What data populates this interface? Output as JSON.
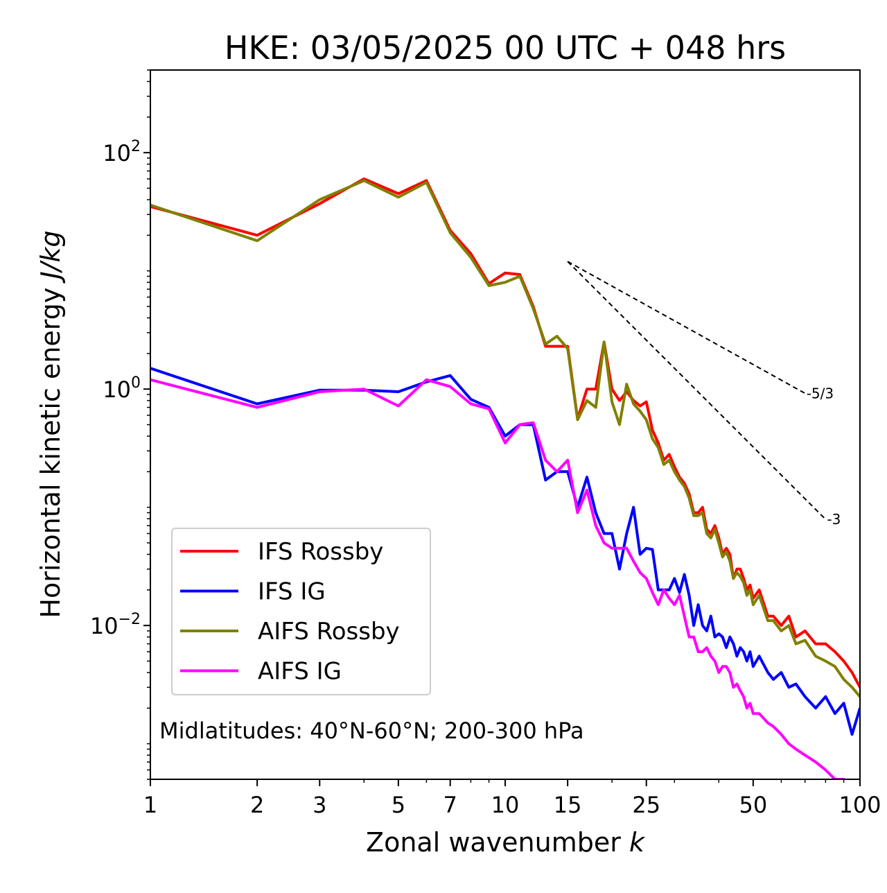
{
  "chart_data": {
    "type": "line",
    "title": "HKE: 03/05/2025 00 UTC + 048 hrs",
    "xlabel_prefix": "Zonal wavenumber ",
    "xlabel_var": "k",
    "ylabel_prefix": "Horizontal kinetic energy ",
    "ylabel_unit": "J/kg",
    "x_scale": "log",
    "y_scale": "log",
    "xlim": [
      1,
      100
    ],
    "ylim": [
      0.0005,
      500
    ],
    "grid": false,
    "legend_position": "lower-left",
    "x_ticks": [
      1,
      2,
      3,
      5,
      7,
      10,
      15,
      25,
      50,
      100
    ],
    "x_tick_labels": [
      "1",
      "2",
      "3",
      "5",
      "7",
      "10",
      "15",
      "25",
      "50",
      "100"
    ],
    "y_ticks": [
      0.01,
      1,
      100
    ],
    "y_tick_labels": [
      {
        "base": "10",
        "exp": "−2"
      },
      {
        "base": "10",
        "exp": "0"
      },
      {
        "base": "10",
        "exp": "2"
      }
    ],
    "annotation": "Midlatitudes: 40°N-60°N; 200-300 hPa",
    "reference_lines": [
      {
        "label": "-5/3",
        "slope": -1.6667,
        "x_start": 15,
        "y_start": 12,
        "x_end": 70,
        "style": "dashed",
        "color": "#000000"
      },
      {
        "label": "-3",
        "slope": -3,
        "x_start": 15,
        "y_start": 12,
        "x_end": 80,
        "style": "dashed",
        "color": "#000000"
      }
    ],
    "series": [
      {
        "name": "IFS Rossby",
        "color": "#ff0000",
        "x": [
          1,
          2,
          3,
          4,
          5,
          6,
          7,
          8,
          9,
          10,
          11,
          12,
          13,
          14,
          15,
          16,
          17,
          18,
          19,
          20,
          21,
          22,
          23,
          24,
          25,
          26,
          27,
          28,
          29,
          30,
          31,
          32,
          33,
          34,
          35,
          36,
          37,
          38,
          39,
          40,
          41,
          42,
          43,
          44,
          45,
          46,
          47,
          48,
          49,
          50,
          52,
          55,
          57,
          60,
          63,
          66,
          70,
          75,
          80,
          85,
          90,
          95,
          100
        ],
        "y": [
          35,
          20,
          37,
          60,
          45,
          58,
          22,
          14,
          7.8,
          9.6,
          9.3,
          5,
          2.3,
          2.3,
          2.3,
          0.56,
          1.0,
          1.0,
          2.5,
          1.0,
          0.8,
          0.95,
          0.8,
          0.72,
          0.78,
          0.45,
          0.35,
          0.25,
          0.28,
          0.22,
          0.18,
          0.16,
          0.13,
          0.09,
          0.09,
          0.1,
          0.065,
          0.06,
          0.07,
          0.055,
          0.04,
          0.045,
          0.04,
          0.025,
          0.03,
          0.03,
          0.025,
          0.02,
          0.022,
          0.017,
          0.02,
          0.012,
          0.012,
          0.01,
          0.012,
          0.008,
          0.009,
          0.007,
          0.007,
          0.006,
          0.005,
          0.004,
          0.003
        ]
      },
      {
        "name": "IFS IG",
        "color": "#0000ff",
        "x": [
          1,
          2,
          3,
          4,
          5,
          6,
          7,
          8,
          9,
          10,
          11,
          12,
          13,
          14,
          15,
          16,
          17,
          18,
          19,
          20,
          21,
          22,
          23,
          24,
          25,
          26,
          27,
          28,
          29,
          30,
          31,
          32,
          33,
          34,
          35,
          36,
          37,
          38,
          39,
          40,
          41,
          42,
          43,
          44,
          45,
          46,
          47,
          48,
          49,
          50,
          52,
          55,
          57,
          60,
          63,
          66,
          70,
          75,
          80,
          85,
          90,
          95,
          100
        ],
        "y": [
          1.5,
          0.75,
          0.98,
          0.98,
          0.95,
          1.15,
          1.3,
          0.82,
          0.7,
          0.4,
          0.5,
          0.5,
          0.17,
          0.2,
          0.2,
          0.1,
          0.18,
          0.09,
          0.06,
          0.06,
          0.03,
          0.06,
          0.1,
          0.04,
          0.045,
          0.044,
          0.02,
          0.02,
          0.02,
          0.025,
          0.019,
          0.027,
          0.018,
          0.01,
          0.015,
          0.01,
          0.009,
          0.012,
          0.008,
          0.0085,
          0.008,
          0.0065,
          0.008,
          0.007,
          0.0055,
          0.0065,
          0.006,
          0.005,
          0.006,
          0.0045,
          0.0055,
          0.004,
          0.0035,
          0.004,
          0.003,
          0.0032,
          0.0025,
          0.002,
          0.0025,
          0.0018,
          0.0022,
          0.0012,
          0.002
        ]
      },
      {
        "name": "AIFS Rossby",
        "color": "#808000",
        "x": [
          1,
          2,
          3,
          4,
          5,
          6,
          7,
          8,
          9,
          10,
          11,
          12,
          13,
          14,
          15,
          16,
          17,
          18,
          19,
          20,
          21,
          22,
          23,
          24,
          25,
          26,
          27,
          28,
          29,
          30,
          31,
          32,
          33,
          34,
          35,
          36,
          37,
          38,
          39,
          40,
          41,
          42,
          43,
          44,
          45,
          46,
          47,
          48,
          49,
          50,
          52,
          55,
          57,
          60,
          63,
          66,
          70,
          75,
          80,
          85,
          90,
          95,
          100
        ],
        "y": [
          36,
          18,
          40,
          58,
          42,
          56,
          21,
          13,
          7.5,
          8.0,
          9.0,
          4.8,
          2.4,
          2.8,
          2.2,
          0.55,
          0.8,
          0.7,
          2.5,
          0.78,
          0.5,
          1.1,
          0.75,
          0.65,
          0.55,
          0.38,
          0.32,
          0.23,
          0.25,
          0.2,
          0.17,
          0.15,
          0.12,
          0.085,
          0.085,
          0.09,
          0.06,
          0.055,
          0.065,
          0.05,
          0.038,
          0.042,
          0.035,
          0.025,
          0.028,
          0.026,
          0.023,
          0.018,
          0.02,
          0.015,
          0.018,
          0.011,
          0.011,
          0.009,
          0.01,
          0.007,
          0.0075,
          0.0055,
          0.005,
          0.0045,
          0.0035,
          0.003,
          0.0025
        ]
      },
      {
        "name": "AIFS IG",
        "color": "#ff00ff",
        "x": [
          1,
          2,
          3,
          4,
          5,
          6,
          7,
          8,
          9,
          10,
          11,
          12,
          13,
          14,
          15,
          16,
          17,
          18,
          19,
          20,
          21,
          22,
          23,
          24,
          25,
          26,
          27,
          28,
          29,
          30,
          31,
          32,
          33,
          34,
          35,
          36,
          37,
          38,
          39,
          40,
          41,
          42,
          43,
          44,
          45,
          46,
          47,
          48,
          49,
          50,
          52,
          55,
          57,
          60,
          63,
          66,
          70,
          75,
          80,
          85,
          90,
          95,
          100
        ],
        "y": [
          1.2,
          0.7,
          0.95,
          1.0,
          0.72,
          1.2,
          1.05,
          0.75,
          0.68,
          0.35,
          0.5,
          0.52,
          0.25,
          0.2,
          0.25,
          0.09,
          0.14,
          0.07,
          0.05,
          0.045,
          0.045,
          0.045,
          0.035,
          0.028,
          0.025,
          0.019,
          0.015,
          0.02,
          0.017,
          0.015,
          0.018,
          0.012,
          0.008,
          0.008,
          0.006,
          0.006,
          0.0065,
          0.0055,
          0.005,
          0.004,
          0.0045,
          0.0045,
          0.004,
          0.003,
          0.0032,
          0.0028,
          0.0025,
          0.002,
          0.0022,
          0.0018,
          0.0018,
          0.0015,
          0.0014,
          0.0012,
          0.001,
          0.0009,
          0.0008,
          0.0007,
          0.0006,
          0.0005,
          0.0005,
          0.0004,
          0.0004
        ]
      }
    ]
  }
}
